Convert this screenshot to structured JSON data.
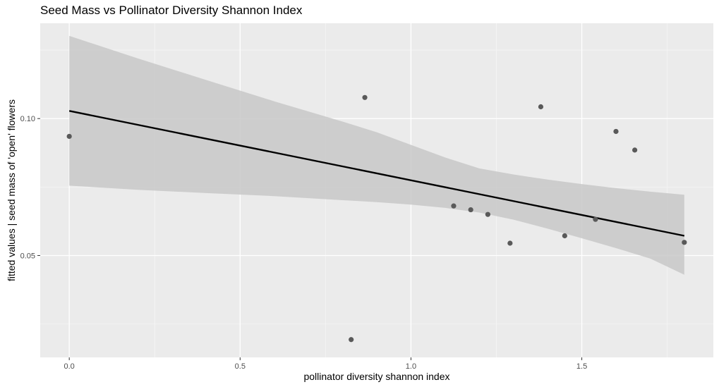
{
  "chart_data": {
    "type": "scatter",
    "title": "Seed Mass vs Pollinator Diversity Shannon Index",
    "xlabel": "pollinator diversity shannon index",
    "ylabel": "fitted values | seed mass of 'open' flowers",
    "xlim": [
      -0.085,
      1.885
    ],
    "ylim": [
      0.0128,
      0.1348
    ],
    "x_ticks": [
      0.0,
      0.5,
      1.0,
      1.5
    ],
    "x_tick_labels": [
      "0.0",
      "0.5",
      "1.0",
      "1.5"
    ],
    "y_ticks": [
      0.05,
      0.1
    ],
    "y_tick_labels": [
      "0.05",
      "0.10"
    ],
    "grid": true,
    "points": [
      {
        "x": 0.0,
        "y": 0.0935
      },
      {
        "x": 0.825,
        "y": 0.0193
      },
      {
        "x": 0.865,
        "y": 0.1077
      },
      {
        "x": 1.125,
        "y": 0.0681
      },
      {
        "x": 1.175,
        "y": 0.0667
      },
      {
        "x": 1.225,
        "y": 0.065
      },
      {
        "x": 1.29,
        "y": 0.0545
      },
      {
        "x": 1.38,
        "y": 0.1043
      },
      {
        "x": 1.45,
        "y": 0.0572
      },
      {
        "x": 1.54,
        "y": 0.0632
      },
      {
        "x": 1.6,
        "y": 0.0953
      },
      {
        "x": 1.655,
        "y": 0.0885
      },
      {
        "x": 1.8,
        "y": 0.0548
      }
    ],
    "fit_line": {
      "x": [
        0.0,
        1.8
      ],
      "y": [
        0.1028,
        0.0572
      ]
    },
    "confidence_band": {
      "x": [
        0.0,
        0.2,
        0.4,
        0.6,
        0.8,
        0.9,
        1.0,
        1.1,
        1.2,
        1.3,
        1.4,
        1.5,
        1.6,
        1.7,
        1.8
      ],
      "upper": [
        0.1302,
        0.122,
        0.1141,
        0.1063,
        0.0989,
        0.095,
        0.0904,
        0.0858,
        0.0818,
        0.0796,
        0.0777,
        0.0761,
        0.0746,
        0.0733,
        0.0722
      ],
      "lower": [
        0.0755,
        0.074,
        0.0728,
        0.0717,
        0.0702,
        0.0695,
        0.0686,
        0.0674,
        0.0657,
        0.0631,
        0.0598,
        0.0563,
        0.0527,
        0.0489,
        0.043
      ]
    },
    "colors": {
      "panel": "#ebebeb",
      "grid_major": "#ffffff",
      "point": "#595959",
      "line": "#000000",
      "band": "#c8c8c8"
    }
  }
}
